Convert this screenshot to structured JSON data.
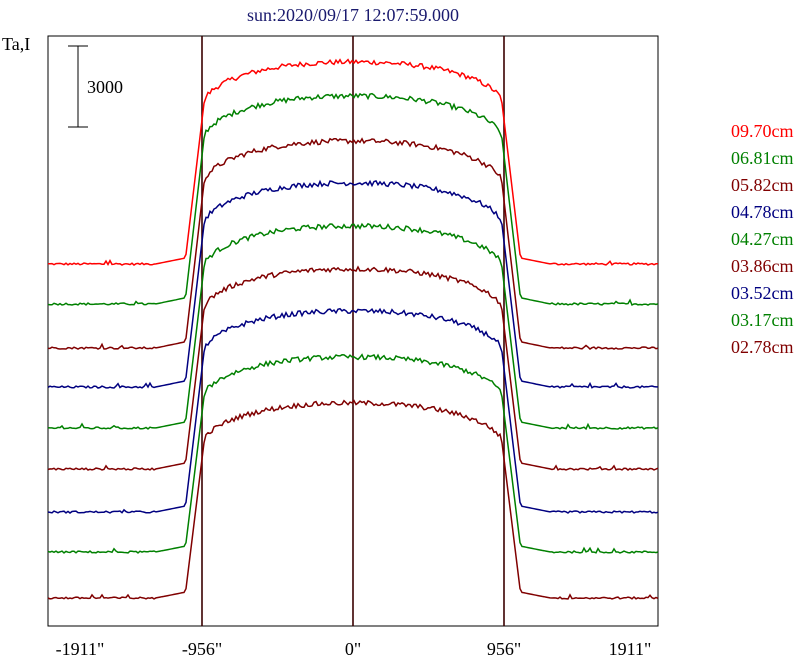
{
  "chart_data": {
    "type": "line",
    "title": "sun:2020/09/17 12:07:59.000",
    "ylabel": "Ta,I",
    "scale_bar_label": "3000",
    "x_ticks": [
      "-1911\"",
      "-956\"",
      "0\"",
      "956\"",
      "1911\""
    ],
    "x_tick_values": [
      -1911,
      -956,
      0,
      956,
      1911
    ],
    "xlim": [
      -1911,
      1911
    ],
    "vertical_lines": [
      -956,
      0,
      956
    ],
    "grid": false,
    "legend_position": "right",
    "series": [
      {
        "name": "09.70cm",
        "color": "#ff0000"
      },
      {
        "name": "06.81cm",
        "color": "#008000"
      },
      {
        "name": "05.82cm",
        "color": "#800000"
      },
      {
        "name": "04.78cm",
        "color": "#000080"
      },
      {
        "name": "04.27cm",
        "color": "#008000"
      },
      {
        "name": "03.86cm",
        "color": "#800000"
      },
      {
        "name": "03.52cm",
        "color": "#000080"
      },
      {
        "name": "03.17cm",
        "color": "#008000"
      },
      {
        "name": "02.78cm",
        "color": "#800000"
      }
    ]
  }
}
